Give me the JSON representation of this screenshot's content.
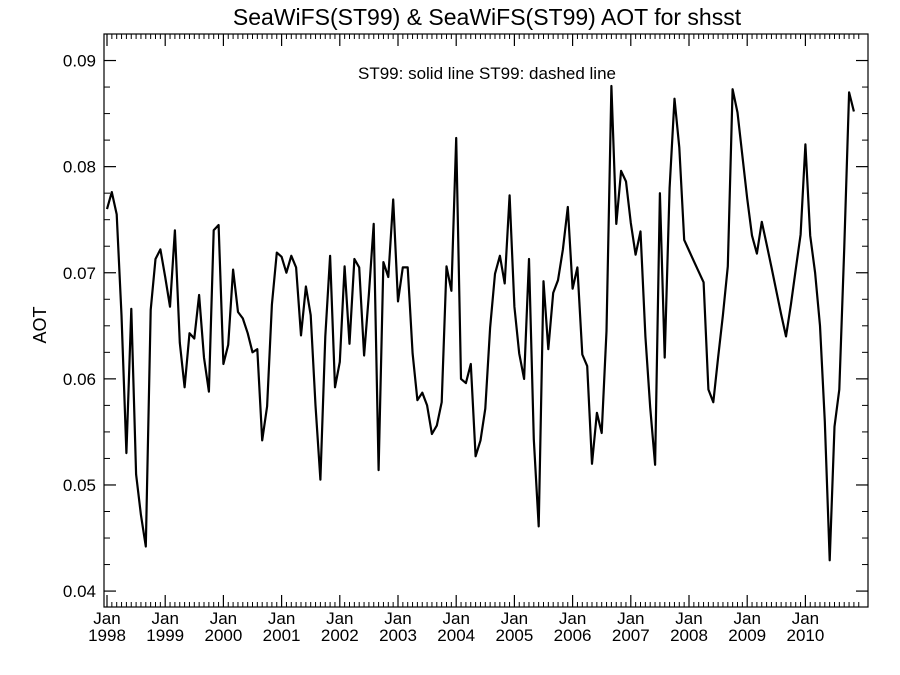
{
  "chart_data": {
    "type": "line",
    "title": "SeaWiFS(ST99) & SeaWiFS(ST99)  AOT for shsst",
    "legend_text": "ST99: solid line   ST99: dashed line",
    "ylabel": "AOT",
    "xlabel": "",
    "ylim": [
      0.0385,
      0.0925
    ],
    "xlim": [
      1998.0,
      2010.95
    ],
    "y_ticks": [
      {
        "value": 0.04,
        "label": "0.04"
      },
      {
        "value": 0.05,
        "label": "0.05"
      },
      {
        "value": 0.06,
        "label": "0.06"
      },
      {
        "value": 0.07,
        "label": "0.07"
      },
      {
        "value": 0.08,
        "label": "0.08"
      },
      {
        "value": 0.09,
        "label": "0.09"
      }
    ],
    "x_ticks": [
      {
        "value": 1998,
        "month": "Jan",
        "year": "1998"
      },
      {
        "value": 1999,
        "month": "Jan",
        "year": "1999"
      },
      {
        "value": 2000,
        "month": "Jan",
        "year": "2000"
      },
      {
        "value": 2001,
        "month": "Jan",
        "year": "2001"
      },
      {
        "value": 2002,
        "month": "Jan",
        "year": "2002"
      },
      {
        "value": 2003,
        "month": "Jan",
        "year": "2003"
      },
      {
        "value": 2004,
        "month": "Jan",
        "year": "2004"
      },
      {
        "value": 2005,
        "month": "Jan",
        "year": "2005"
      },
      {
        "value": 2006,
        "month": "Jan",
        "year": "2006"
      },
      {
        "value": 2007,
        "month": "Jan",
        "year": "2007"
      },
      {
        "value": 2008,
        "month": "Jan",
        "year": "2008"
      },
      {
        "value": 2009,
        "month": "Jan",
        "year": "2009"
      },
      {
        "value": 2010,
        "month": "Jan",
        "year": "2010"
      }
    ],
    "series": [
      {
        "style": "solid",
        "color": "#000000",
        "start": "1998-01",
        "values": [
          0.076,
          0.0776,
          0.0755,
          0.066,
          0.053,
          0.0666,
          0.051,
          0.0472,
          0.0442,
          0.0665,
          0.0713,
          0.0722,
          0.0696,
          0.0668,
          0.074,
          0.0634,
          0.0592,
          0.0643,
          0.0638,
          0.0679,
          0.062,
          0.0588,
          0.074,
          0.0745,
          0.0614,
          0.0632,
          0.0703,
          0.0663,
          0.0657,
          0.0643,
          0.0625,
          0.0628,
          0.0542,
          0.0574,
          0.067,
          0.0719,
          0.0715,
          0.07,
          0.0716,
          0.0705,
          0.0641,
          0.0687,
          0.066,
          0.0575,
          0.0505,
          0.064,
          0.0716,
          0.0592,
          0.0616,
          0.0706,
          0.0633,
          0.0713,
          0.0705,
          0.0622,
          0.068,
          0.0746,
          0.0514,
          0.071,
          0.0696,
          0.0769,
          0.0673,
          0.0705,
          0.0705,
          0.0624,
          0.058,
          0.0587,
          0.0575,
          0.0548,
          0.0556,
          0.0578,
          0.0706,
          0.0683,
          0.0827,
          0.06,
          0.0596,
          0.0614,
          0.0527,
          0.0542,
          0.0572,
          0.0648,
          0.0699,
          0.0716,
          0.069,
          0.0773,
          0.0668,
          0.0624,
          0.06,
          0.0713,
          0.0543,
          0.0461,
          0.0692,
          0.0628,
          0.0681,
          0.0693,
          0.0722,
          0.0762,
          0.0685,
          0.0705,
          0.0623,
          0.0612,
          0.052,
          0.0568,
          0.0549,
          0.0645,
          0.0876,
          0.0746,
          0.0796,
          0.0786,
          0.0747,
          0.0717,
          0.0739,
          0.064,
          0.0573,
          0.0519,
          0.0775,
          0.062,
          0.078,
          0.0864,
          0.0818,
          0.0731,
          0.0721,
          0.0711,
          0.0701,
          0.0691,
          0.059,
          0.0578,
          0.062,
          0.066,
          0.0706,
          0.0873,
          0.0851,
          0.081,
          0.077,
          0.0735,
          0.0718,
          0.0748,
          0.0727,
          0.0705,
          0.0683,
          0.0661,
          0.064,
          0.067,
          0.0703,
          0.0736,
          0.0821,
          0.0735,
          0.07,
          0.065,
          0.056,
          0.0429,
          0.0555,
          0.059,
          0.0722,
          0.087,
          0.0852
        ]
      }
    ]
  }
}
